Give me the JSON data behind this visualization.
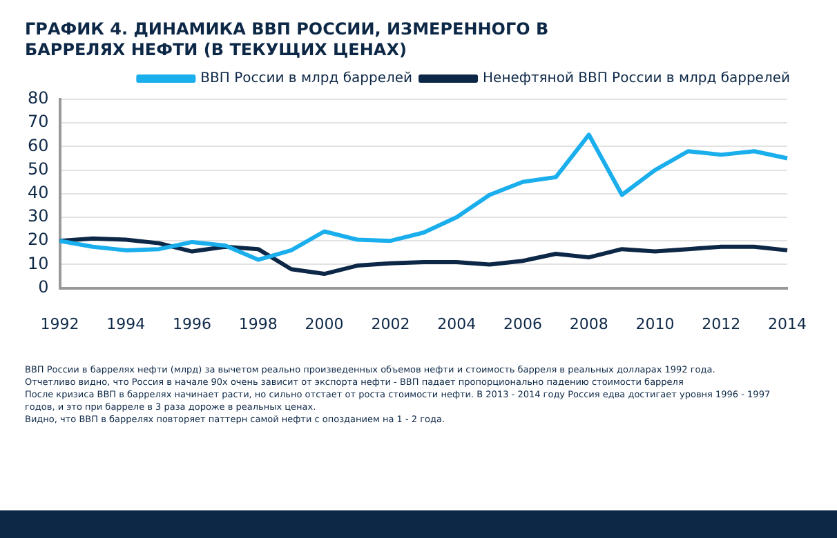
{
  "chart_data": {
    "type": "line",
    "title": "ГРАФИК 4. ДИНАМИКА ВВП РОССИИ, ИЗМЕРЕННОГО В БАРРЕЛЯХ НЕФТИ (В ТЕКУЩИХ ЦЕНАХ)",
    "categories": [
      "1992",
      null,
      "1994",
      null,
      "1996",
      null,
      "1998",
      null,
      "2000",
      null,
      "2002",
      null,
      "2004",
      null,
      "2006",
      null,
      "2008",
      null,
      "2010",
      null,
      "2012",
      null,
      "2014"
    ],
    "series": [
      {
        "name": "ВВП России в млрд баррелей",
        "color": "#1aaeec",
        "values": [
          20,
          17.5,
          16,
          16.5,
          19.5,
          18,
          12,
          16,
          24,
          20.5,
          20,
          23.5,
          30,
          39.5,
          45,
          47,
          65,
          39.5,
          50,
          58,
          56.5,
          58,
          55
        ]
      },
      {
        "name": "Ненефтяной ВВП России в млрд баррелей",
        "color": "#0d2847",
        "values": [
          20,
          21,
          20.5,
          19,
          15.5,
          17.5,
          16.5,
          8,
          6,
          9.5,
          10.5,
          11,
          11,
          10,
          11.5,
          14.5,
          13,
          16.5,
          15.5,
          16.5,
          17.5,
          17.5,
          16
        ]
      }
    ],
    "ylim": [
      0,
      80
    ],
    "yticks": [
      0,
      10,
      20,
      30,
      40,
      50,
      60,
      70,
      80
    ],
    "grid": "y",
    "legend": "top right",
    "marker": "none",
    "line_style": "solid",
    "annotations": [
      "ВВП России в баррелях нефти (млрд) за вычетом реально произведенных объемов нефти и стоимость барреля в реальных долларах 1992 года.",
      "Отчетливо видно, что Россия в начале 90х очень зависит от экспорта нефти - ВВП падает пропорционально падению стоимости барреля",
      "После кризиса ВВП в баррелях начинает расти, но сильно отстает от роста стоимости нефти. В 2013 - 2014 году Россия едва достигает уровня 1996 - 1997 годов, и это при барреле в 3 раза дороже в реальных ценах.",
      "Видно, что ВВП в баррелях повторяет паттерн самой нефти с опозданием на 1 - 2 года."
    ]
  }
}
